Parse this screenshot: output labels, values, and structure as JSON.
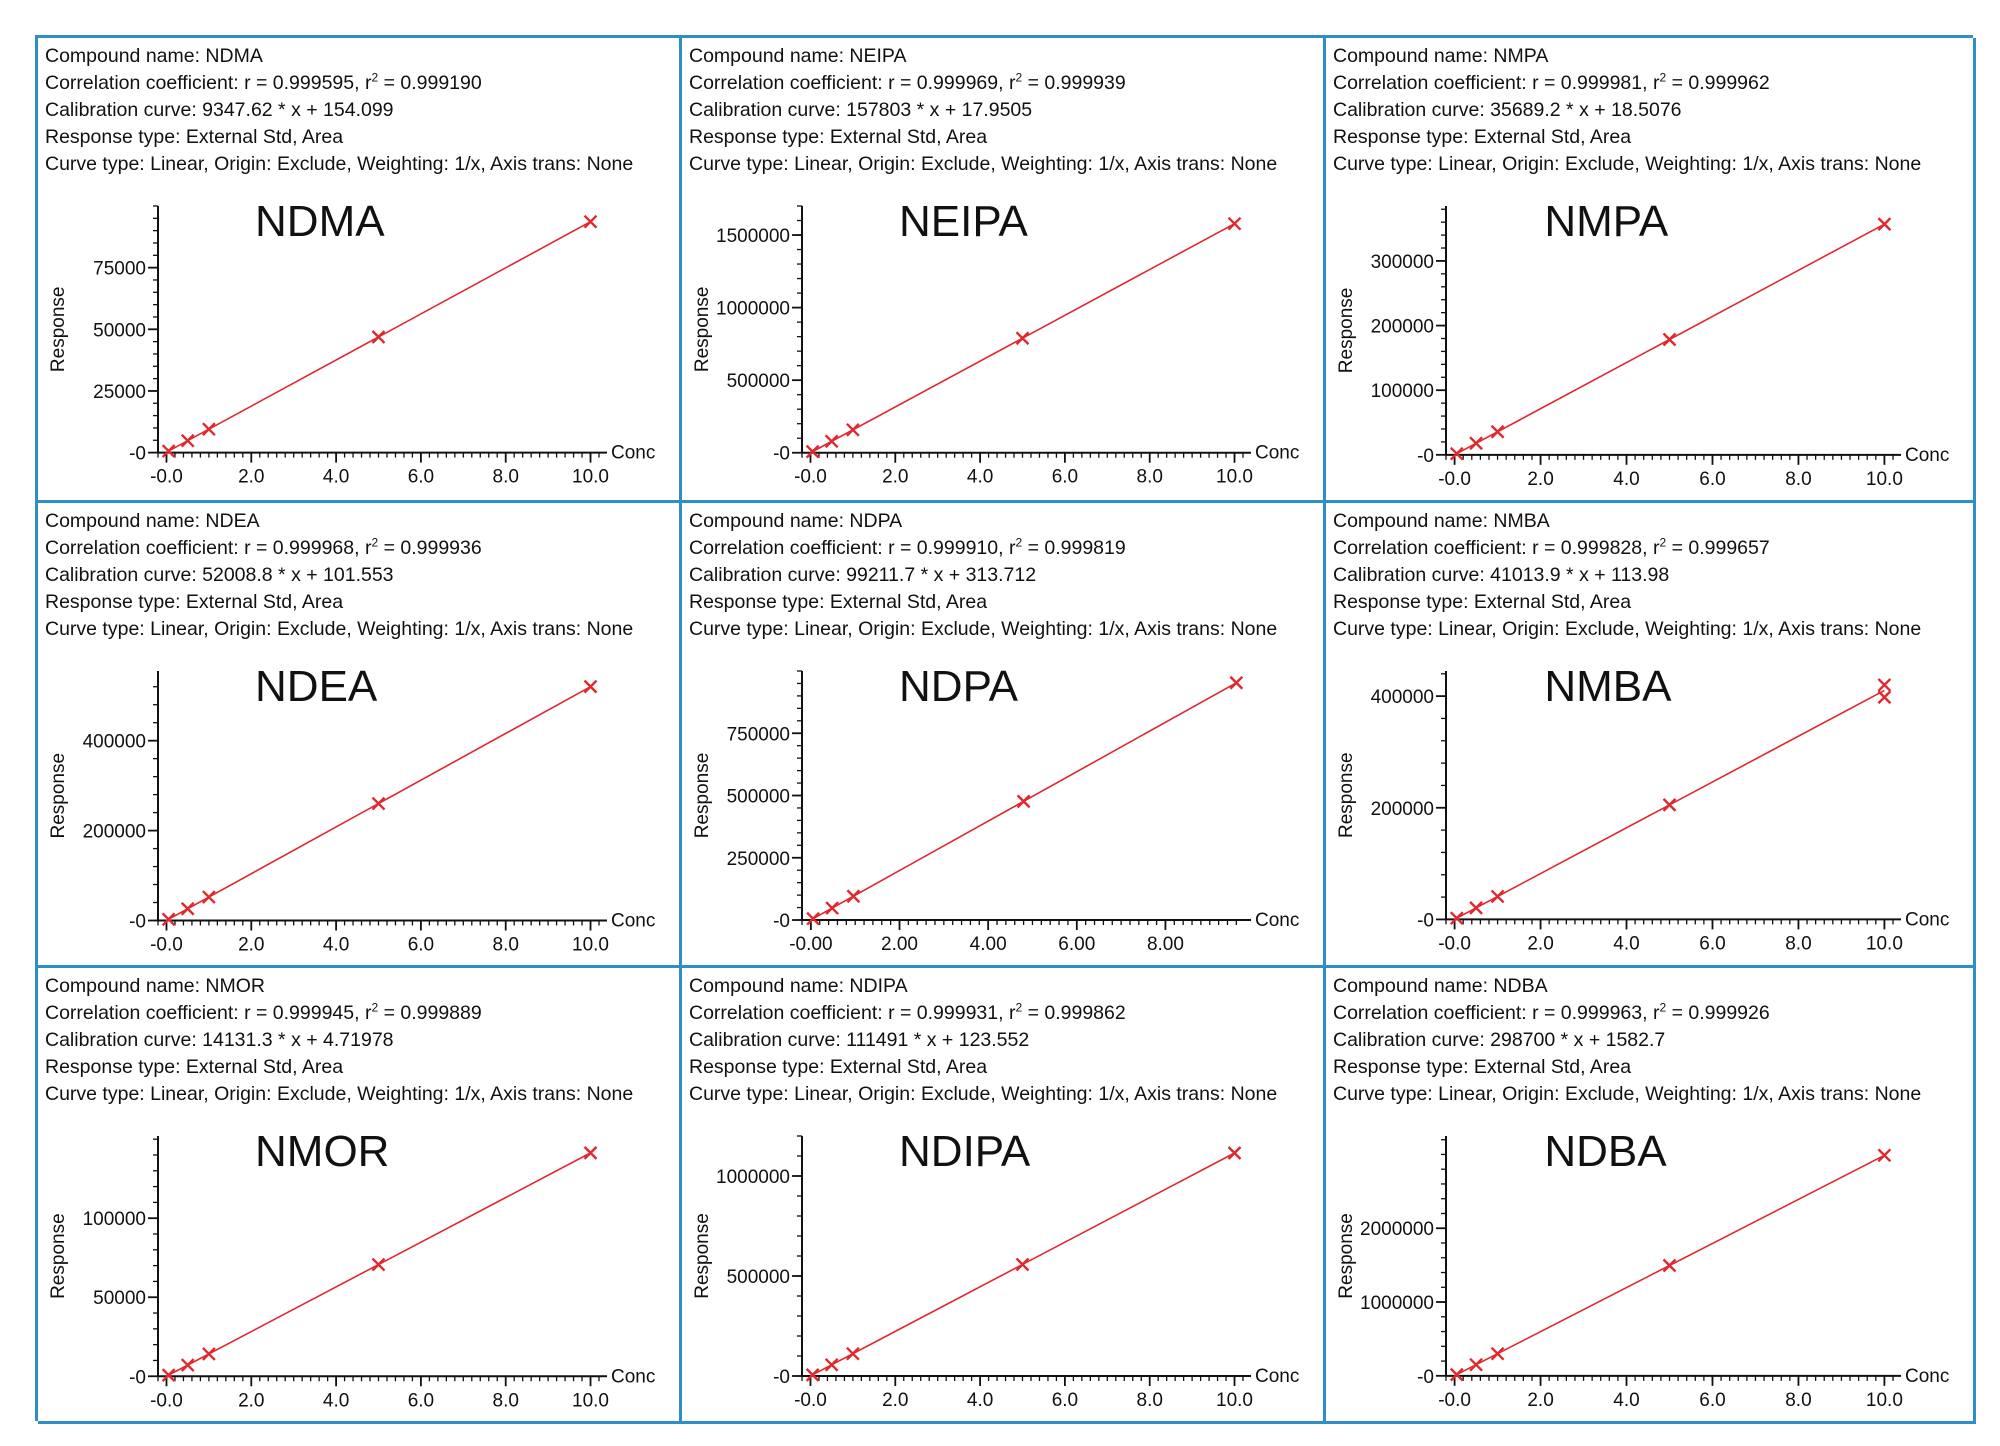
{
  "labels": {
    "compound_prefix": "Compound name: ",
    "corr_prefix": "Correlation coefficient: ",
    "cal_prefix": "Calibration curve: ",
    "response_type": "Response type: External Std, Area",
    "curve_type": "Curve type: Linear, Origin: Exclude, Weighting: 1/x, Axis trans: None",
    "ylabel": "Response",
    "xlabel": "Conc"
  },
  "colors": {
    "border": "#2e8fc7",
    "series": "#e0282e",
    "axis": "#111111"
  },
  "chart_data": [
    {
      "type": "line",
      "compound": "NDMA",
      "big_title": "NDMA",
      "r": "0.999595",
      "r2": "0.999190",
      "equation": "9347.62 * x + 154.099",
      "slope": 9347.62,
      "intercept": 154.099,
      "x": [
        0.05,
        0.5,
        1,
        5,
        10
      ],
      "y": [
        621,
        4828,
        9502,
        46892,
        93630
      ],
      "xlim": [
        -0.2,
        10.2
      ],
      "ylim": [
        -3000,
        100000
      ],
      "xticks": [
        "-0.0",
        "2.0",
        "4.0",
        "6.0",
        "8.0",
        "10.0"
      ],
      "xtick_values": [
        0,
        2,
        4,
        6,
        8,
        10
      ],
      "yticks": [
        "-0",
        "25000",
        "50000",
        "75000"
      ],
      "ytick_values": [
        0,
        25000,
        50000,
        75000
      ]
    },
    {
      "type": "line",
      "compound": "NEIPA",
      "big_title": "NEIPA",
      "r": "0.999969",
      "r2": "0.999939",
      "equation": "157803 * x + 17.9505",
      "slope": 157803,
      "intercept": 17.9505,
      "x": [
        0.05,
        0.5,
        1,
        5,
        10
      ],
      "y": [
        7908,
        78919,
        157821,
        789033,
        1578048
      ],
      "xlim": [
        -0.2,
        10.2
      ],
      "ylim": [
        -50000,
        1700000
      ],
      "xticks": [
        "-0.0",
        "2.0",
        "4.0",
        "6.0",
        "8.0",
        "10.0"
      ],
      "xtick_values": [
        0,
        2,
        4,
        6,
        8,
        10
      ],
      "yticks": [
        "-0",
        "500000",
        "1000000",
        "1500000"
      ],
      "ytick_values": [
        0,
        500000,
        1000000,
        1500000
      ]
    },
    {
      "type": "line",
      "compound": "NMPA",
      "big_title": "NMPA",
      "r": "0.999981",
      "r2": "0.999962",
      "equation": "35689.2 * x + 18.5076",
      "slope": 35689.2,
      "intercept": 18.5076,
      "x": [
        0.05,
        0.5,
        1,
        5,
        10
      ],
      "y": [
        1803,
        17863,
        35708,
        178464,
        356910
      ],
      "xlim": [
        -0.2,
        10.2
      ],
      "ylim": [
        -8000,
        385000
      ],
      "xticks": [
        "-0.0",
        "2.0",
        "4.0",
        "6.0",
        "8.0",
        "10.0"
      ],
      "xtick_values": [
        0,
        2,
        4,
        6,
        8,
        10
      ],
      "yticks": [
        "-0",
        "100000",
        "200000",
        "300000"
      ],
      "ytick_values": [
        0,
        100000,
        200000,
        300000
      ]
    },
    {
      "type": "line",
      "compound": "NDEA",
      "big_title": "NDEA",
      "r": "0.999968",
      "r2": "0.999936",
      "equation": "52008.8 * x + 101.553",
      "slope": 52008.8,
      "intercept": 101.553,
      "x": [
        0.05,
        0.5,
        1,
        5,
        10
      ],
      "y": [
        2702,
        26106,
        52110,
        260145,
        520190
      ],
      "xlim": [
        -0.2,
        10.2
      ],
      "ylim": [
        -10000,
        555000
      ],
      "xticks": [
        "-0.0",
        "2.0",
        "4.0",
        "6.0",
        "8.0",
        "10.0"
      ],
      "xtick_values": [
        0,
        2,
        4,
        6,
        8,
        10
      ],
      "yticks": [
        "-0",
        "200000",
        "400000"
      ],
      "ytick_values": [
        0,
        200000,
        400000
      ]
    },
    {
      "type": "line",
      "compound": "NDPA",
      "big_title": "NDPA",
      "r": "0.999910",
      "r2": "0.999819",
      "equation": "99211.7 * x + 313.712",
      "slope": 99211.7,
      "intercept": 313.712,
      "x": [
        0.05,
        0.48,
        0.96,
        4.8,
        9.6
      ],
      "y": [
        5274,
        47935,
        95557,
        476530,
        952746
      ],
      "xlim": [
        -0.2,
        9.75
      ],
      "ylim": [
        -20000,
        1000000
      ],
      "xticks": [
        "-0.00",
        "2.00",
        "4.00",
        "6.00",
        "8.00"
      ],
      "xtick_values": [
        0,
        2,
        4,
        6,
        8
      ],
      "yticks": [
        "-0",
        "250000",
        "500000",
        "750000"
      ],
      "ytick_values": [
        0,
        250000,
        500000,
        750000
      ]
    },
    {
      "type": "line",
      "compound": "NMBA",
      "big_title": "NMBA",
      "r": "0.999828",
      "r2": "0.999657",
      "equation": "41013.9 * x + 113.98",
      "slope": 41013.9,
      "intercept": 113.98,
      "x": [
        0.05,
        0.5,
        1,
        5,
        10,
        10
      ],
      "y": [
        2165,
        20621,
        41128,
        205183,
        420000,
        398000
      ],
      "xlim": [
        -0.2,
        10.2
      ],
      "ylim": [
        -10000,
        445000
      ],
      "xticks": [
        "-0.0",
        "2.0",
        "4.0",
        "6.0",
        "8.0",
        "10.0"
      ],
      "xtick_values": [
        0,
        2,
        4,
        6,
        8,
        10
      ],
      "yticks": [
        "-0",
        "200000",
        "400000"
      ],
      "ytick_values": [
        0,
        200000,
        400000
      ]
    },
    {
      "type": "line",
      "compound": "NMOR",
      "big_title": "NMOR",
      "r": "0.999945",
      "r2": "0.999889",
      "equation": "14131.3 * x + 4.71978",
      "slope": 14131.3,
      "intercept": 4.71978,
      "x": [
        0.05,
        0.5,
        1,
        5,
        10
      ],
      "y": [
        711,
        7070,
        14136,
        70661,
        141318
      ],
      "xlim": [
        -0.2,
        10.2
      ],
      "ylim": [
        -3000,
        152000
      ],
      "xticks": [
        "-0.0",
        "2.0",
        "4.0",
        "6.0",
        "8.0",
        "10.0"
      ],
      "xtick_values": [
        0,
        2,
        4,
        6,
        8,
        10
      ],
      "yticks": [
        "-0",
        "50000",
        "100000"
      ],
      "ytick_values": [
        0,
        50000,
        100000
      ]
    },
    {
      "type": "line",
      "compound": "NDIPA",
      "big_title": "NDIPA",
      "r": "0.999931",
      "r2": "0.999862",
      "equation": "111491 * x + 123.552",
      "slope": 111491,
      "intercept": 123.552,
      "x": [
        0.05,
        0.5,
        1,
        5,
        10
      ],
      "y": [
        5698,
        55869,
        111615,
        557579,
        1115034
      ],
      "xlim": [
        -0.2,
        10.2
      ],
      "ylim": [
        -25000,
        1200000
      ],
      "xticks": [
        "-0.0",
        "2.0",
        "4.0",
        "6.0",
        "8.0",
        "10.0"
      ],
      "xtick_values": [
        0,
        2,
        4,
        6,
        8,
        10
      ],
      "yticks": [
        "-0",
        "500000",
        "1000000"
      ],
      "ytick_values": [
        0,
        500000,
        1000000
      ]
    },
    {
      "type": "line",
      "compound": "NDBA",
      "big_title": "NDBA",
      "r": "0.999963",
      "r2": "0.999926",
      "equation": "298700 * x + 1582.7",
      "slope": 298700,
      "intercept": 1582.7,
      "x": [
        0.05,
        0.5,
        1,
        5,
        10
      ],
      "y": [
        16518,
        150933,
        300283,
        1495083,
        2988583
      ],
      "xlim": [
        -0.2,
        10.2
      ],
      "ylim": [
        -70000,
        3250000
      ],
      "xticks": [
        "-0.0",
        "2.0",
        "4.0",
        "6.0",
        "8.0",
        "10.0"
      ],
      "xtick_values": [
        0,
        2,
        4,
        6,
        8,
        10
      ],
      "yticks": [
        "-0",
        "1000000",
        "2000000"
      ],
      "ytick_values": [
        0,
        1000000,
        2000000
      ]
    }
  ]
}
